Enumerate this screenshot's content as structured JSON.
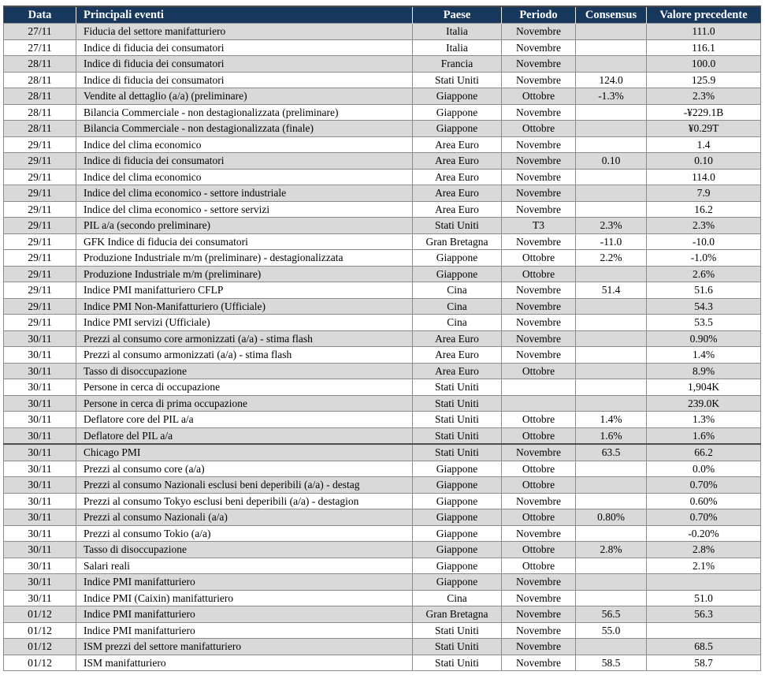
{
  "colors": {
    "header_bg": "#17375d",
    "header_text": "#ffffff",
    "row_shaded": "#d9d9d9",
    "row_plain": "#ffffff",
    "grid": "#8c8c8c",
    "outer_border": "#4d4d4d"
  },
  "table": {
    "columns": [
      {
        "key": "data",
        "label": "Data"
      },
      {
        "key": "evento",
        "label": "Principali eventi"
      },
      {
        "key": "paese",
        "label": "Paese"
      },
      {
        "key": "periodo",
        "label": "Periodo"
      },
      {
        "key": "consensus",
        "label": "Consensus"
      },
      {
        "key": "valore",
        "label": "Valore precedente"
      }
    ],
    "rows": [
      {
        "cells": [
          "27/11",
          "Fiducia del settore manifatturiero",
          "Italia",
          "Novembre",
          "",
          "111.0"
        ],
        "shaded": true
      },
      {
        "cells": [
          "27/11",
          "Indice di fiducia dei consumatori",
          "Italia",
          "Novembre",
          "",
          "116.1"
        ],
        "shaded": false
      },
      {
        "cells": [
          "28/11",
          "Indice di fiducia dei consumatori",
          "Francia",
          "Novembre",
          "",
          "100.0"
        ],
        "shaded": true
      },
      {
        "cells": [
          "28/11",
          "Indice di fiducia dei consumatori",
          "Stati Uniti",
          "Novembre",
          "124.0",
          "125.9"
        ],
        "shaded": false
      },
      {
        "cells": [
          "28/11",
          "Vendite al dettaglio (a/a)  (preliminare)",
          "Giappone",
          "Ottobre",
          "-1.3%",
          "2.3%"
        ],
        "shaded": true
      },
      {
        "cells": [
          "28/11",
          "Bilancia Commerciale -  non destagionalizzata (preliminare)",
          "Giappone",
          "Novembre",
          "",
          "-¥229.1B"
        ],
        "shaded": false
      },
      {
        "cells": [
          "28/11",
          "Bilancia Commerciale -  non destagionalizzata (finale)",
          "Giappone",
          "Ottobre",
          "",
          "¥0.29T"
        ],
        "shaded": true
      },
      {
        "cells": [
          "29/11",
          "Indice del clima economico",
          "Area Euro",
          "Novembre",
          "",
          "1.4"
        ],
        "shaded": false
      },
      {
        "cells": [
          "29/11",
          "Indice di fiducia dei consumatori",
          "Area Euro",
          "Novembre",
          "0.10",
          "0.10"
        ],
        "shaded": true
      },
      {
        "cells": [
          "29/11",
          "Indice del clima economico",
          "Area Euro",
          "Novembre",
          "",
          "114.0"
        ],
        "shaded": false
      },
      {
        "cells": [
          "29/11",
          "Indice del clima economico - settore industriale",
          "Area Euro",
          "Novembre",
          "",
          "7.9"
        ],
        "shaded": true
      },
      {
        "cells": [
          "29/11",
          "Indice del clima economico - settore servizi",
          "Area Euro",
          "Novembre",
          "",
          "16.2"
        ],
        "shaded": false
      },
      {
        "cells": [
          "29/11",
          "PIL a/a (secondo preliminare)",
          "Stati Uniti",
          "T3",
          "2.3%",
          "2.3%"
        ],
        "shaded": true
      },
      {
        "cells": [
          "29/11",
          "GFK Indice di fiducia dei consumatori",
          "Gran Bretagna",
          "Novembre",
          "-11.0",
          "-10.0"
        ],
        "shaded": false
      },
      {
        "cells": [
          "29/11",
          "Produzione Industriale m/m (preliminare) - destagionalizzata",
          "Giappone",
          "Ottobre",
          "2.2%",
          "-1.0%"
        ],
        "shaded": false
      },
      {
        "cells": [
          "29/11",
          "Produzione Industriale m/m (preliminare)",
          "Giappone",
          "Ottobre",
          "",
          "2.6%"
        ],
        "shaded": true
      },
      {
        "cells": [
          "29/11",
          "Indice PMI manifatturiero CFLP",
          "Cina",
          "Novembre",
          "51.4",
          "51.6"
        ],
        "shaded": false
      },
      {
        "cells": [
          "29/11",
          "Indice PMI  Non-Manifatturiero (Ufficiale)",
          "Cina",
          "Novembre",
          "",
          "54.3"
        ],
        "shaded": true
      },
      {
        "cells": [
          "29/11",
          "Indice PMI  servizi (Ufficiale)",
          "Cina",
          "Novembre",
          "",
          "53.5"
        ],
        "shaded": false
      },
      {
        "cells": [
          "30/11",
          "Prezzi al consumo core armonizzati (a/a) - stima flash",
          "Area Euro",
          "Novembre",
          "",
          "0.90%"
        ],
        "shaded": true
      },
      {
        "cells": [
          "30/11",
          "Prezzi al consumo armonizzati (a/a) - stima flash",
          "Area Euro",
          "Novembre",
          "",
          "1.4%"
        ],
        "shaded": false
      },
      {
        "cells": [
          "30/11",
          "Tasso di disoccupazione",
          "Area Euro",
          "Ottobre",
          "",
          "8.9%"
        ],
        "shaded": true
      },
      {
        "cells": [
          "30/11",
          "Persone in cerca di occupazione",
          "Stati Uniti",
          "",
          "",
          "1,904K"
        ],
        "shaded": false
      },
      {
        "cells": [
          "30/11",
          "Persone in cerca di prima occupazione",
          "Stati Uniti",
          "",
          "",
          "239.0K"
        ],
        "shaded": true
      },
      {
        "cells": [
          "30/11",
          "Deflatore  core del PIL a/a",
          "Stati Uniti",
          "Ottobre",
          "1.4%",
          "1.3%"
        ],
        "shaded": false
      },
      {
        "cells": [
          "30/11",
          "Deflatore del PIL a/a",
          "Stati Uniti",
          "Ottobre",
          "1.6%",
          "1.6%"
        ],
        "shaded": true
      },
      {
        "cells": [
          "30/11",
          "Chicago PMI",
          "Stati Uniti",
          "Novembre",
          "63.5",
          "66.2"
        ],
        "shaded": true,
        "thick_top": true
      },
      {
        "cells": [
          "30/11",
          "Prezzi al consumo core (a/a)",
          "Giappone",
          "Ottobre",
          "",
          "0.0%"
        ],
        "shaded": false
      },
      {
        "cells": [
          "30/11",
          "Prezzi al consumo Nazionali esclusi beni deperibili (a/a) -  destag",
          "Giappone",
          "Ottobre",
          "",
          "0.70%"
        ],
        "shaded": true
      },
      {
        "cells": [
          "30/11",
          "Prezzi al consumo Tokyo esclusi beni deperibili (a/a) -  destagion",
          "Giappone",
          "Novembre",
          "",
          "0.60%"
        ],
        "shaded": false
      },
      {
        "cells": [
          "30/11",
          "Prezzi al consumo Nazionali (a/a)",
          "Giappone",
          "Ottobre",
          "0.80%",
          "0.70%"
        ],
        "shaded": true
      },
      {
        "cells": [
          "30/11",
          "Prezzi al consumo Tokio (a/a)",
          "Giappone",
          "Novembre",
          "",
          "-0.20%"
        ],
        "shaded": false
      },
      {
        "cells": [
          "30/11",
          "Tasso di disoccupazione",
          "Giappone",
          "Ottobre",
          "2.8%",
          "2.8%"
        ],
        "shaded": true
      },
      {
        "cells": [
          "30/11",
          "Salari reali",
          "Giappone",
          "Ottobre",
          "",
          "2.1%"
        ],
        "shaded": false
      },
      {
        "cells": [
          "30/11",
          "Indice PMI manifatturiero",
          "Giappone",
          "Novembre",
          "",
          ""
        ],
        "shaded": true
      },
      {
        "cells": [
          "30/11",
          "Indice PMI (Caixin) manifatturiero",
          "Cina",
          "Novembre",
          "",
          "51.0"
        ],
        "shaded": false
      },
      {
        "cells": [
          "01/12",
          "Indice PMI manifatturiero",
          "Gran Bretagna",
          "Novembre",
          "56.5",
          "56.3"
        ],
        "shaded": true
      },
      {
        "cells": [
          "01/12",
          "Indice PMI manifatturiero",
          "Stati Uniti",
          "Novembre",
          "55.0",
          ""
        ],
        "shaded": false
      },
      {
        "cells": [
          "01/12",
          "ISM  prezzi del settore manifatturiero",
          "Stati Uniti",
          "Novembre",
          "",
          "68.5"
        ],
        "shaded": true
      },
      {
        "cells": [
          "01/12",
          "ISM manifatturiero",
          "Stati Uniti",
          "Novembre",
          "58.5",
          "58.7"
        ],
        "shaded": false
      }
    ]
  }
}
